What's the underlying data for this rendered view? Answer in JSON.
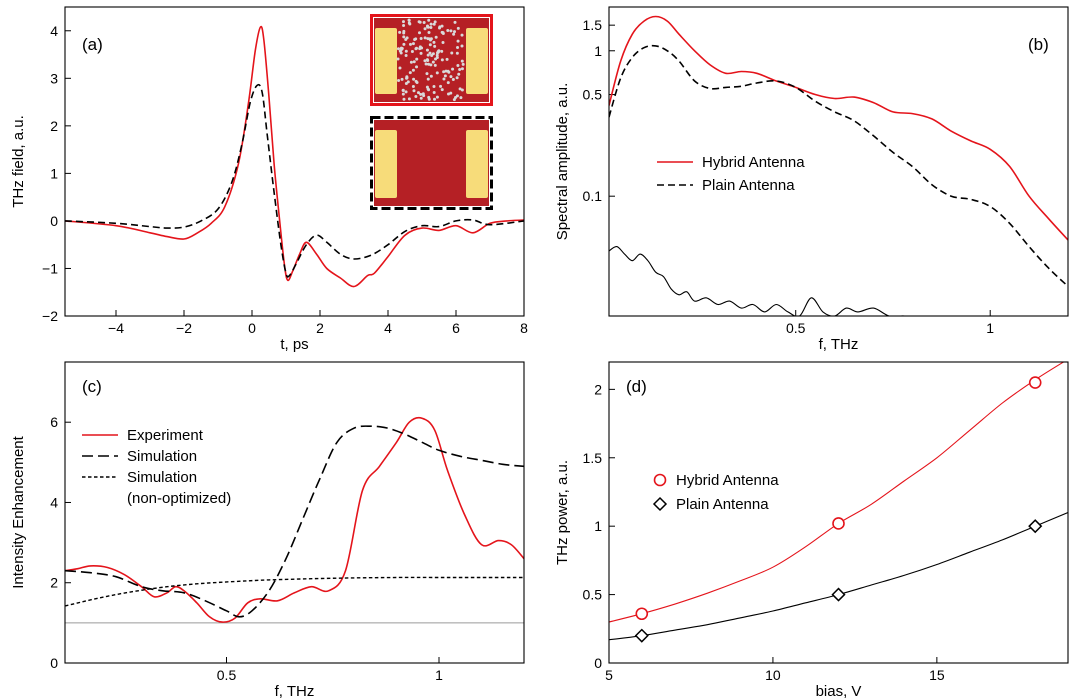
{
  "colors": {
    "red": "#e4141b",
    "black": "#000000",
    "gray_line": "#9a9a9a",
    "device_fill": "#b52025",
    "electrode": "#f7dc7a"
  },
  "chart_data": [
    {
      "id": "a",
      "type": "line",
      "panel_label": "(a)",
      "xlabel": "t, ps",
      "ylabel": "THz field, a.u.",
      "xlim": [
        -5.5,
        8
      ],
      "ylim": [
        -2,
        4.5
      ],
      "xticks": [
        -4,
        -2,
        0,
        2,
        4,
        6,
        8
      ],
      "xtick_labels": [
        "−4",
        "−2",
        "0",
        "2",
        "4",
        "6",
        "8"
      ],
      "yticks": [
        -2,
        -1,
        0,
        1,
        2,
        3,
        4
      ],
      "ytick_labels": [
        "−2",
        "−1",
        "0",
        "1",
        "2",
        "3",
        "4"
      ],
      "inset_icons": [
        "hybrid-antenna-image",
        "plain-antenna-image"
      ],
      "series": [
        {
          "style": "solid-red",
          "x": [
            -5.5,
            -4,
            -3,
            -2.5,
            -2,
            -1.6,
            -1.2,
            -0.8,
            -0.4,
            -0.1,
            0.1,
            0.25,
            0.35,
            0.5,
            0.65,
            0.8,
            0.95,
            1.05,
            1.2,
            1.4,
            1.6,
            1.9,
            2.2,
            2.6,
            3.0,
            3.4,
            3.6,
            4.0,
            4.5,
            5.0,
            5.5,
            6.0,
            6.5,
            7.0,
            7.5,
            8.0
          ],
          "y": [
            0,
            -0.1,
            -0.25,
            -0.33,
            -0.38,
            -0.25,
            -0.05,
            0.3,
            1.2,
            2.5,
            3.6,
            4.08,
            3.8,
            2.6,
            1.2,
            0.1,
            -0.9,
            -1.25,
            -1.05,
            -0.7,
            -0.45,
            -0.7,
            -1.0,
            -1.2,
            -1.38,
            -1.15,
            -1.1,
            -0.75,
            -0.3,
            -0.15,
            -0.2,
            -0.1,
            -0.25,
            -0.05,
            0.0,
            0.02
          ]
        },
        {
          "style": "dashed-black",
          "x": [
            -5.5,
            -4,
            -3,
            -2.5,
            -2,
            -1.5,
            -1.0,
            -0.6,
            -0.3,
            -0.05,
            0.15,
            0.3,
            0.45,
            0.65,
            0.85,
            1.0,
            1.1,
            1.3,
            1.6,
            1.9,
            2.2,
            2.6,
            3.0,
            3.5,
            4.0,
            4.5,
            5.0,
            5.5,
            6.0,
            6.5,
            7.0,
            8.0
          ],
          "y": [
            0,
            -0.05,
            -0.12,
            -0.15,
            -0.13,
            0.0,
            0.25,
            0.8,
            1.6,
            2.5,
            2.85,
            2.7,
            1.8,
            0.6,
            -0.5,
            -1.1,
            -1.15,
            -0.9,
            -0.5,
            -0.3,
            -0.45,
            -0.7,
            -0.8,
            -0.72,
            -0.5,
            -0.22,
            -0.1,
            -0.12,
            0.0,
            0.02,
            -0.08,
            0.0
          ]
        }
      ]
    },
    {
      "id": "b",
      "type": "line",
      "panel_label": "(b)",
      "xlabel": "f, THz",
      "ylabel": "Spectral amplitude, a.u.",
      "xlim": [
        0.02,
        1.2
      ],
      "ylim": [
        0.015,
        2.0
      ],
      "yscale": "log",
      "xticks": [
        0.5,
        1
      ],
      "xtick_labels": [
        "0.5",
        "1"
      ],
      "yticks": [
        0.1,
        0.5,
        1,
        1.5
      ],
      "ytick_labels": [
        "0.1",
        "0.5",
        "1",
        "1.5"
      ],
      "legend_position": "center-left",
      "series": [
        {
          "name": "Hybrid Antenna",
          "style": "solid-red",
          "x": [
            0.02,
            0.05,
            0.08,
            0.11,
            0.14,
            0.17,
            0.2,
            0.24,
            0.28,
            0.32,
            0.36,
            0.4,
            0.45,
            0.5,
            0.55,
            0.6,
            0.65,
            0.7,
            0.75,
            0.8,
            0.85,
            0.9,
            0.95,
            1.0,
            1.05,
            1.1,
            1.15,
            1.2
          ],
          "y": [
            0.42,
            0.85,
            1.3,
            1.6,
            1.72,
            1.6,
            1.3,
            1.0,
            0.8,
            0.7,
            0.72,
            0.7,
            0.62,
            0.56,
            0.5,
            0.47,
            0.48,
            0.44,
            0.38,
            0.37,
            0.34,
            0.28,
            0.24,
            0.21,
            0.16,
            0.1,
            0.07,
            0.05
          ]
        },
        {
          "name": "Plain Antenna",
          "style": "dashed-black",
          "x": [
            0.02,
            0.05,
            0.08,
            0.11,
            0.14,
            0.17,
            0.2,
            0.24,
            0.28,
            0.32,
            0.36,
            0.4,
            0.45,
            0.5,
            0.55,
            0.6,
            0.65,
            0.7,
            0.75,
            0.8,
            0.85,
            0.9,
            0.95,
            1.0,
            1.05,
            1.1,
            1.15,
            1.2
          ],
          "y": [
            0.35,
            0.65,
            0.9,
            1.05,
            1.08,
            1.0,
            0.85,
            0.62,
            0.55,
            0.56,
            0.57,
            0.6,
            0.62,
            0.56,
            0.45,
            0.38,
            0.33,
            0.26,
            0.2,
            0.16,
            0.12,
            0.1,
            0.095,
            0.085,
            0.065,
            0.045,
            0.032,
            0.024
          ]
        },
        {
          "style": "solid-black-thin",
          "x": [
            0.02,
            0.04,
            0.06,
            0.08,
            0.1,
            0.12,
            0.14,
            0.16,
            0.18,
            0.2,
            0.22,
            0.24,
            0.27,
            0.3,
            0.33,
            0.36,
            0.39,
            0.42,
            0.45,
            0.48,
            0.51,
            0.54,
            0.57,
            0.6,
            0.63,
            0.66,
            0.7,
            0.74,
            0.78,
            0.8
          ],
          "y": [
            0.042,
            0.045,
            0.04,
            0.036,
            0.04,
            0.036,
            0.03,
            0.028,
            0.023,
            0.021,
            0.022,
            0.019,
            0.02,
            0.018,
            0.019,
            0.017,
            0.018,
            0.016,
            0.018,
            0.016,
            0.015,
            0.02,
            0.016,
            0.015,
            0.017,
            0.016,
            0.017,
            0.015,
            0.015,
            0.014
          ]
        }
      ]
    },
    {
      "id": "c",
      "type": "line",
      "panel_label": "(c)",
      "xlabel": "f, THz",
      "ylabel": "Intensity Enhancement",
      "xlim": [
        0.12,
        1.2
      ],
      "ylim": [
        0,
        7.5
      ],
      "xticks": [
        0.5,
        1
      ],
      "xtick_labels": [
        "0.5",
        "1"
      ],
      "yticks": [
        0,
        2,
        4,
        6
      ],
      "ytick_labels": [
        "0",
        "2",
        "4",
        "6"
      ],
      "legend_position": "upper-left",
      "reference_line_y": 1,
      "series": [
        {
          "name": "Experiment",
          "style": "solid-red",
          "x": [
            0.12,
            0.15,
            0.18,
            0.22,
            0.26,
            0.3,
            0.33,
            0.36,
            0.38,
            0.4,
            0.43,
            0.46,
            0.49,
            0.52,
            0.55,
            0.58,
            0.62,
            0.66,
            0.7,
            0.74,
            0.78,
            0.82,
            0.86,
            0.9,
            0.93,
            0.96,
            0.99,
            1.02,
            1.06,
            1.1,
            1.14,
            1.17,
            1.2
          ],
          "y": [
            2.3,
            2.35,
            2.42,
            2.38,
            2.2,
            1.9,
            1.65,
            1.75,
            1.9,
            1.8,
            1.5,
            1.15,
            1.02,
            1.12,
            1.5,
            1.6,
            1.55,
            1.75,
            1.9,
            1.8,
            2.3,
            4.3,
            4.9,
            5.5,
            6.0,
            6.1,
            5.8,
            4.8,
            3.7,
            2.95,
            3.05,
            2.95,
            2.6
          ]
        },
        {
          "name": "Simulation",
          "style": "longdash-black",
          "x": [
            0.12,
            0.18,
            0.24,
            0.3,
            0.35,
            0.4,
            0.45,
            0.5,
            0.53,
            0.56,
            0.6,
            0.64,
            0.68,
            0.72,
            0.76,
            0.8,
            0.84,
            0.88,
            0.92,
            0.96,
            1.0,
            1.05,
            1.1,
            1.15,
            1.2
          ],
          "y": [
            2.3,
            2.25,
            2.15,
            1.9,
            1.8,
            1.75,
            1.55,
            1.3,
            1.15,
            1.3,
            1.8,
            2.6,
            3.6,
            4.6,
            5.5,
            5.85,
            5.9,
            5.85,
            5.7,
            5.5,
            5.3,
            5.15,
            5.05,
            4.95,
            4.9
          ]
        },
        {
          "name": "Simulation\n(non-optimized)",
          "name_lines": [
            "Simulation",
            "(non-optimized)"
          ],
          "style": "shortdash-black",
          "x": [
            0.12,
            0.2,
            0.28,
            0.36,
            0.44,
            0.52,
            0.6,
            0.7,
            0.8,
            0.9,
            1.0,
            1.1,
            1.2
          ],
          "y": [
            1.42,
            1.62,
            1.78,
            1.9,
            1.98,
            2.03,
            2.07,
            2.1,
            2.12,
            2.13,
            2.13,
            2.13,
            2.13
          ]
        }
      ]
    },
    {
      "id": "d",
      "type": "scatter",
      "panel_label": "(d)",
      "xlabel": "bias, V",
      "ylabel": "THz power, a.u.",
      "xlim": [
        5,
        19
      ],
      "ylim": [
        0,
        2.2
      ],
      "xticks": [
        5,
        10,
        15
      ],
      "xtick_labels": [
        "5",
        "10",
        "15"
      ],
      "yticks": [
        0,
        0.5,
        1,
        1.5,
        2
      ],
      "ytick_labels": [
        "0",
        "0.5",
        "1",
        "1.5",
        "2"
      ],
      "legend_position": "center-left",
      "series": [
        {
          "name": "Hybrid Antenna",
          "marker": "circle",
          "style": "red",
          "x": [
            6,
            12,
            18
          ],
          "y": [
            0.36,
            1.02,
            2.05
          ]
        },
        {
          "name": "Plain Antenna",
          "marker": "diamond",
          "style": "black",
          "x": [
            6,
            12,
            18
          ],
          "y": [
            0.2,
            0.5,
            1.0
          ]
        }
      ],
      "fits": [
        {
          "style": "red",
          "x": [
            5,
            6,
            7,
            8,
            9,
            10,
            11,
            12,
            13,
            14,
            15,
            16,
            17,
            18,
            19
          ],
          "y": [
            0.3,
            0.36,
            0.43,
            0.51,
            0.6,
            0.7,
            0.85,
            1.02,
            1.16,
            1.33,
            1.5,
            1.7,
            1.9,
            2.07,
            2.22
          ]
        },
        {
          "style": "black",
          "x": [
            5,
            6,
            7,
            8,
            9,
            10,
            11,
            12,
            13,
            14,
            15,
            16,
            17,
            18,
            19
          ],
          "y": [
            0.17,
            0.2,
            0.24,
            0.28,
            0.33,
            0.38,
            0.44,
            0.5,
            0.57,
            0.64,
            0.72,
            0.81,
            0.9,
            1.0,
            1.1
          ]
        }
      ]
    }
  ]
}
